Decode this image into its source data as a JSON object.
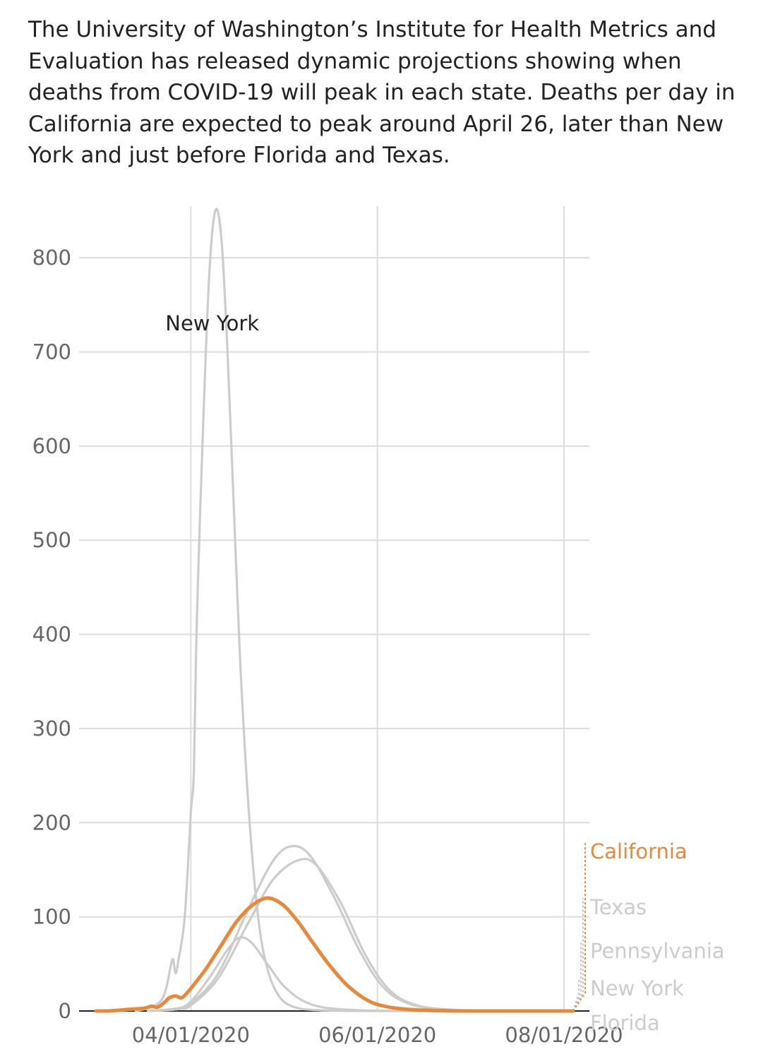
{
  "intro": "The University of Washington’s Institute for Health Metrics and Evaluation has released dynamic projections showing when deaths from COVID-19 will peak in each state. Deaths per day in California are expected to peak around April 26, later than New York and just before Florida and Texas.",
  "chart_data": {
    "type": "line",
    "title": "",
    "xlabel": "",
    "ylabel": "",
    "x_axis": {
      "type": "date",
      "range": [
        "2020-03-01",
        "2020-08-04"
      ],
      "tick_values": [
        "2020-04-01",
        "2020-06-01",
        "2020-08-01"
      ],
      "tick_labels": [
        "04/01/2020",
        "06/01/2020",
        "08/01/2020"
      ]
    },
    "y_axis": {
      "range": [
        0,
        855
      ],
      "tick_values": [
        0,
        100,
        200,
        300,
        400,
        500,
        600,
        700,
        800
      ],
      "tick_labels": [
        "0",
        "100",
        "200",
        "300",
        "400",
        "500",
        "600",
        "700",
        "800"
      ]
    },
    "grid": true,
    "series": [
      {
        "name": "New York",
        "color": "#cccccc",
        "highlight": false,
        "points": [
          [
            "2020-03-14",
            0
          ],
          [
            "2020-03-18",
            3
          ],
          [
            "2020-03-22",
            10
          ],
          [
            "2020-03-24",
            25
          ],
          [
            "2020-03-26",
            55
          ],
          [
            "2020-03-27",
            40
          ],
          [
            "2020-03-28",
            55
          ],
          [
            "2020-03-30",
            100
          ],
          [
            "2020-04-01",
            210
          ],
          [
            "2020-04-02",
            255
          ],
          [
            "2020-04-03",
            420
          ],
          [
            "2020-04-05",
            620
          ],
          [
            "2020-04-07",
            780
          ],
          [
            "2020-04-09",
            850
          ],
          [
            "2020-04-11",
            820
          ],
          [
            "2020-04-13",
            700
          ],
          [
            "2020-04-15",
            540
          ],
          [
            "2020-04-17",
            380
          ],
          [
            "2020-04-20",
            210
          ],
          [
            "2020-04-23",
            100
          ],
          [
            "2020-04-26",
            45
          ],
          [
            "2020-04-30",
            15
          ],
          [
            "2020-05-05",
            4
          ],
          [
            "2020-05-12",
            1
          ],
          [
            "2020-05-25",
            0
          ],
          [
            "2020-06-15",
            0
          ],
          [
            "2020-08-04",
            0
          ]
        ]
      },
      {
        "name": "Pennsylvania",
        "color": "#cccccc",
        "highlight": false,
        "points": [
          [
            "2020-03-18",
            0
          ],
          [
            "2020-03-28",
            3
          ],
          [
            "2020-04-01",
            10
          ],
          [
            "2020-04-07",
            35
          ],
          [
            "2020-04-13",
            65
          ],
          [
            "2020-04-17",
            78
          ],
          [
            "2020-04-21",
            72
          ],
          [
            "2020-04-26",
            50
          ],
          [
            "2020-05-01",
            28
          ],
          [
            "2020-05-07",
            12
          ],
          [
            "2020-05-14",
            4
          ],
          [
            "2020-05-25",
            1
          ],
          [
            "2020-06-10",
            0
          ],
          [
            "2020-08-04",
            0
          ]
        ]
      },
      {
        "name": "Texas",
        "color": "#cccccc",
        "highlight": false,
        "points": [
          [
            "2020-03-18",
            0
          ],
          [
            "2020-03-28",
            2
          ],
          [
            "2020-04-01",
            8
          ],
          [
            "2020-04-10",
            40
          ],
          [
            "2020-04-20",
            110
          ],
          [
            "2020-04-28",
            160
          ],
          [
            "2020-05-04",
            175
          ],
          [
            "2020-05-10",
            165
          ],
          [
            "2020-05-18",
            120
          ],
          [
            "2020-05-26",
            65
          ],
          [
            "2020-06-03",
            25
          ],
          [
            "2020-06-12",
            7
          ],
          [
            "2020-06-25",
            1
          ],
          [
            "2020-07-10",
            0
          ],
          [
            "2020-08-04",
            0
          ]
        ]
      },
      {
        "name": "Florida",
        "color": "#cccccc",
        "highlight": false,
        "points": [
          [
            "2020-03-18",
            0
          ],
          [
            "2020-03-28",
            2
          ],
          [
            "2020-04-01",
            6
          ],
          [
            "2020-04-10",
            35
          ],
          [
            "2020-04-20",
            95
          ],
          [
            "2020-04-28",
            140
          ],
          [
            "2020-05-06",
            160
          ],
          [
            "2020-05-12",
            155
          ],
          [
            "2020-05-20",
            115
          ],
          [
            "2020-05-28",
            60
          ],
          [
            "2020-06-05",
            22
          ],
          [
            "2020-06-14",
            6
          ],
          [
            "2020-06-27",
            1
          ],
          [
            "2020-07-12",
            0
          ],
          [
            "2020-08-04",
            0
          ]
        ]
      },
      {
        "name": "California",
        "color": "#e8883a",
        "highlight": true,
        "points": [
          [
            "2020-03-01",
            0
          ],
          [
            "2020-03-05",
            0
          ],
          [
            "2020-03-09",
            1
          ],
          [
            "2020-03-13",
            2
          ],
          [
            "2020-03-17",
            3
          ],
          [
            "2020-03-19",
            5
          ],
          [
            "2020-03-21",
            4
          ],
          [
            "2020-03-23",
            8
          ],
          [
            "2020-03-25",
            14
          ],
          [
            "2020-03-27",
            16
          ],
          [
            "2020-03-29",
            14
          ],
          [
            "2020-03-31",
            20
          ],
          [
            "2020-04-02",
            28
          ],
          [
            "2020-04-06",
            45
          ],
          [
            "2020-04-11",
            70
          ],
          [
            "2020-04-16",
            95
          ],
          [
            "2020-04-21",
            112
          ],
          [
            "2020-04-26",
            120
          ],
          [
            "2020-05-01",
            113
          ],
          [
            "2020-05-06",
            95
          ],
          [
            "2020-05-11",
            72
          ],
          [
            "2020-05-16",
            50
          ],
          [
            "2020-05-21",
            31
          ],
          [
            "2020-05-26",
            17
          ],
          [
            "2020-05-31",
            8
          ],
          [
            "2020-06-07",
            3
          ],
          [
            "2020-06-15",
            1
          ],
          [
            "2020-06-30",
            0
          ],
          [
            "2020-08-04",
            0
          ]
        ]
      }
    ],
    "annotations": [
      {
        "text": "New York",
        "x": "2020-04-08",
        "y": 720
      }
    ],
    "legend_placement": "right",
    "legend": [
      {
        "name": "California",
        "color": "#e8883a",
        "highlight": true
      },
      {
        "name": "Texas",
        "color": "#cccccc"
      },
      {
        "name": "Pennsylvania",
        "color": "#cccccc"
      },
      {
        "name": "New York",
        "color": "#cccccc"
      },
      {
        "name": "Florida",
        "color": "#cccccc"
      }
    ]
  }
}
